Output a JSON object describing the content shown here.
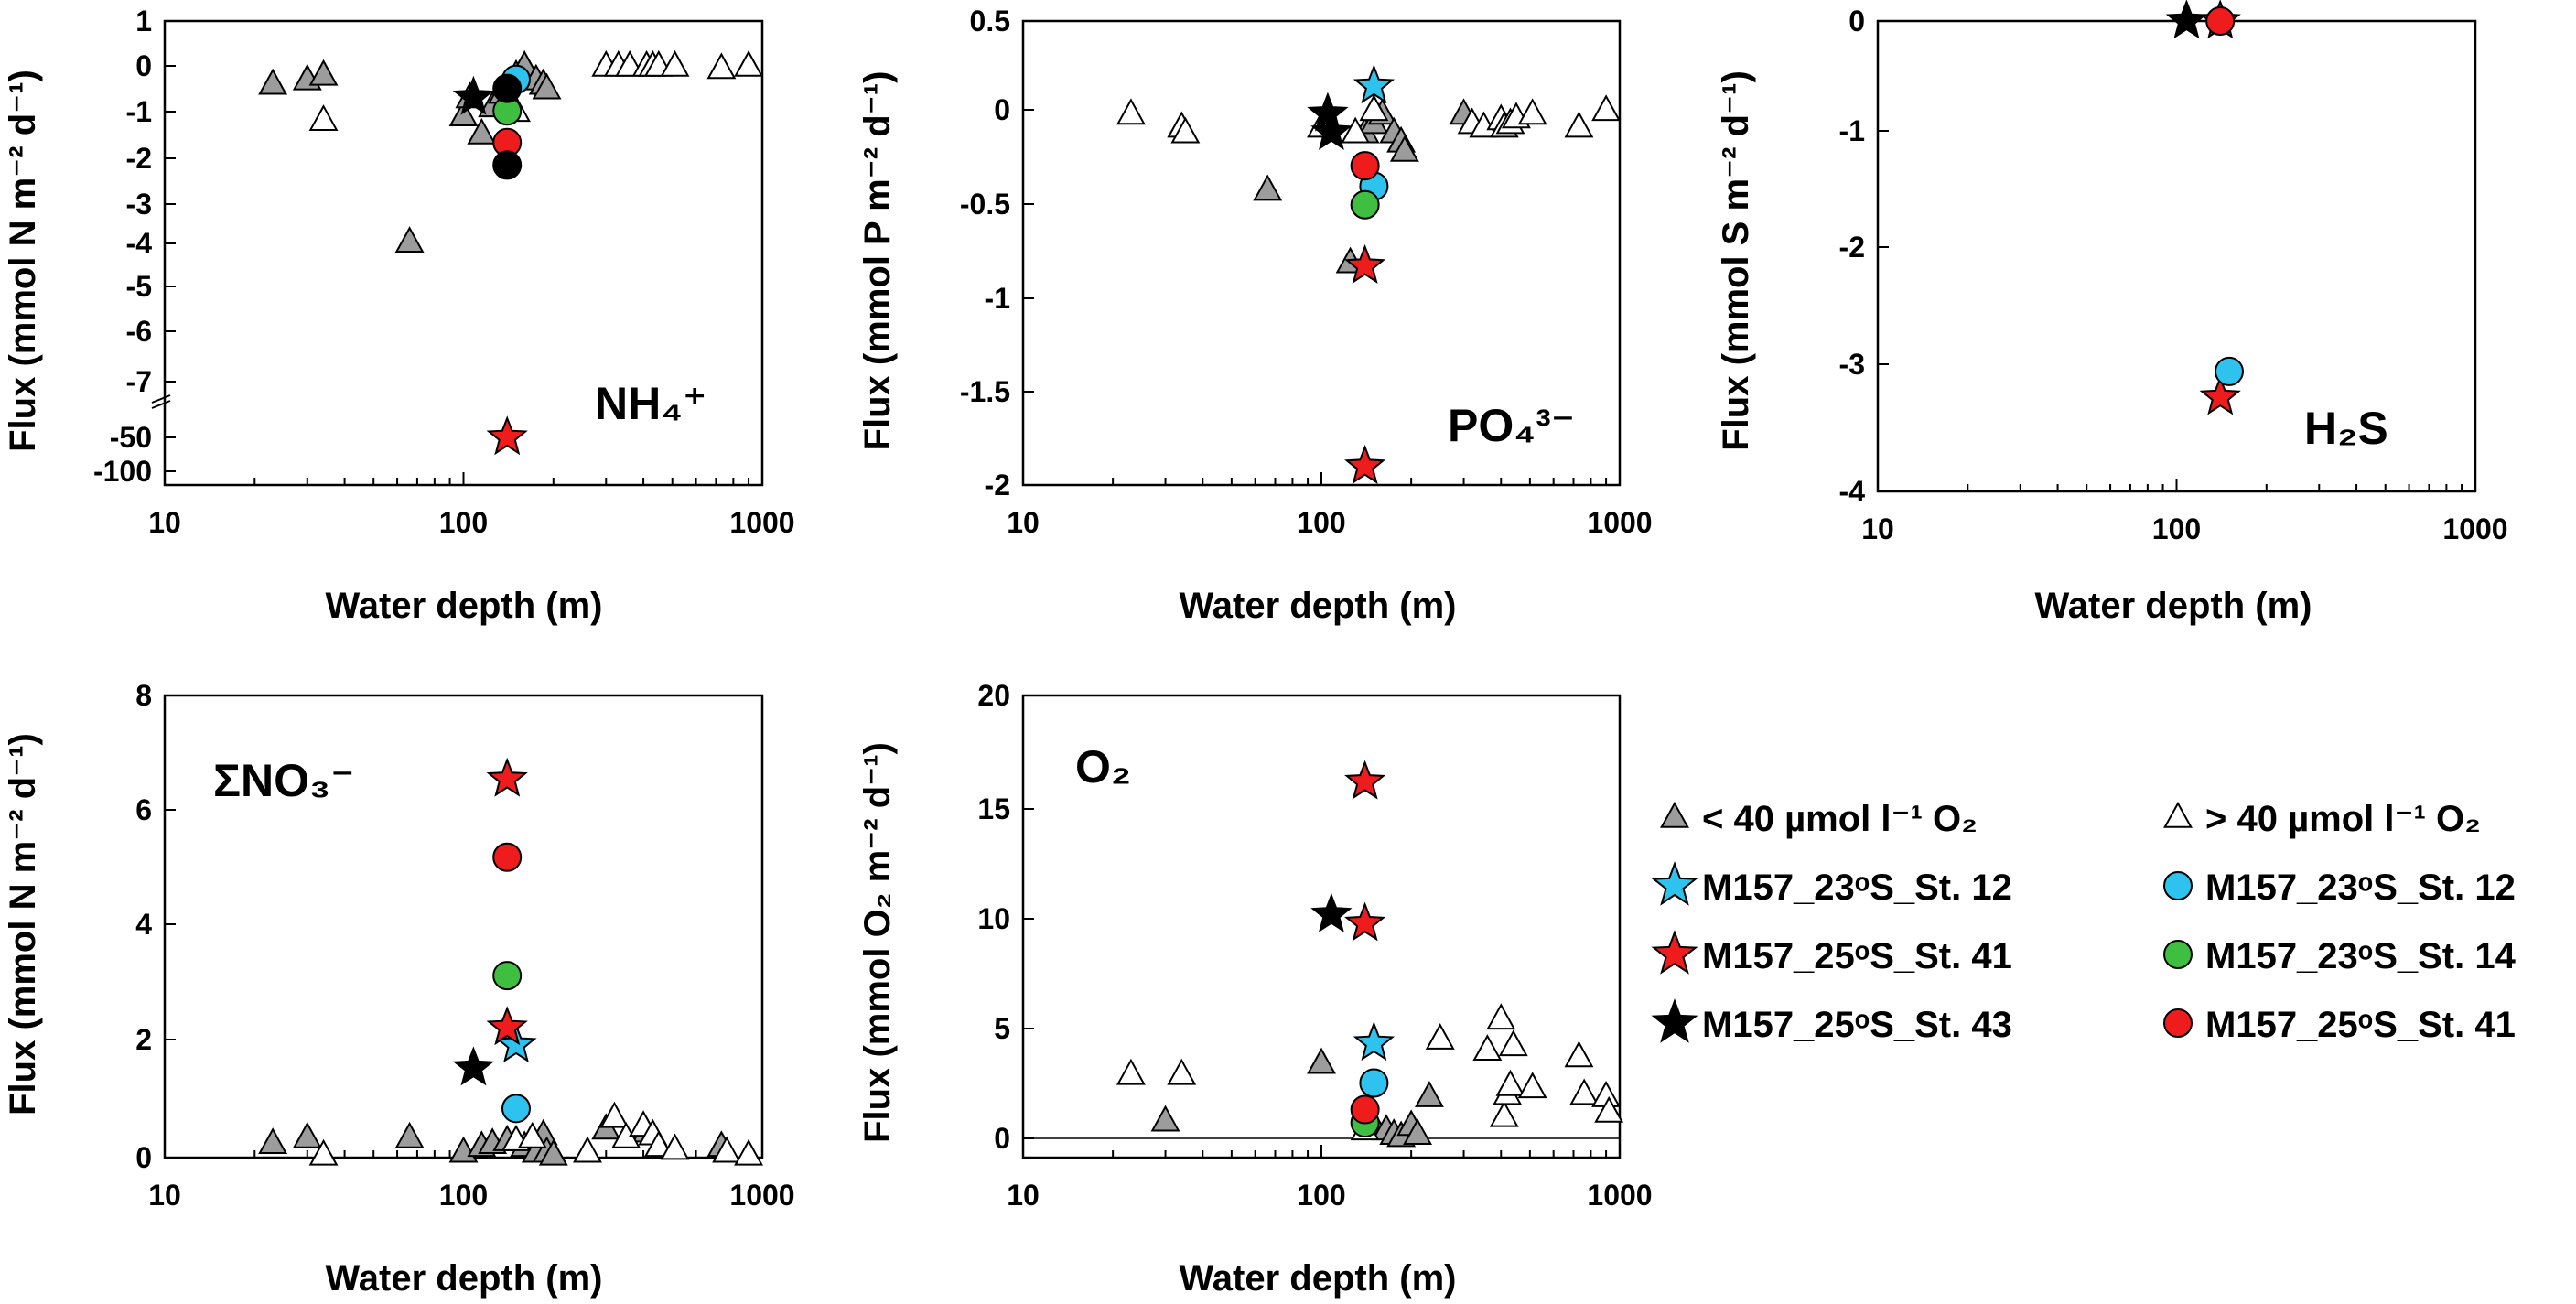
{
  "colors": {
    "low_o2_triangle": "#9c9c9c",
    "high_o2_triangle": "#ffffff",
    "cyan": "#2ec2ee",
    "red": "#ee1c1c",
    "green": "#3fbf3f",
    "black": "#000000"
  },
  "legend": {
    "items": [
      {
        "marker": "triangle-gray",
        "color": "#9c9c9c",
        "label": "< 40 µmol l⁻¹ O₂"
      },
      {
        "marker": "triangle-white",
        "color": "#ffffff",
        "label": "> 40 µmol l⁻¹ O₂"
      },
      {
        "marker": "star",
        "color": "#2ec2ee",
        "label": "M157_23ᵒS_St. 12"
      },
      {
        "marker": "circle",
        "color": "#2ec2ee",
        "label": "M157_23ᵒS_St. 12"
      },
      {
        "marker": "star",
        "color": "#ee1c1c",
        "label": "M157_25ᵒS_St. 41"
      },
      {
        "marker": "circle",
        "color": "#3fbf3f",
        "label": "M157_23ᵒS_St. 14"
      },
      {
        "marker": "star",
        "color": "#000000",
        "label": "M157_25ᵒS_St. 43"
      },
      {
        "marker": "circle",
        "color": "#ee1c1c",
        "label": "M157_25ᵒS_St. 41"
      }
    ]
  },
  "chart_data": [
    {
      "id": "nh4",
      "type": "scatter",
      "title": "NH₄⁺",
      "xlabel": "Water depth (m)",
      "ylabel": "Flux (mmol N m⁻² d⁻¹)",
      "xscale": "log",
      "xlim": [
        10,
        1000
      ],
      "xticks": [
        "10",
        "100",
        "1000"
      ],
      "ylim": [
        -100,
        1
      ],
      "yaxis_break": "between -7 and -50",
      "yticks": [
        "1",
        "0",
        "-1",
        "-2",
        "-3",
        "-4",
        "-5",
        "-6",
        "-7",
        "-50",
        "-100"
      ],
      "series": [
        {
          "name": "< 40 µmol l-1 O2",
          "marker": "triangle-gray",
          "points": [
            [
              23,
              -0.4
            ],
            [
              30,
              -0.3
            ],
            [
              34,
              -0.2
            ],
            [
              66,
              -3.9
            ],
            [
              100,
              -1.1
            ],
            [
              105,
              -0.7
            ],
            [
              115,
              -1.5
            ],
            [
              125,
              -0.9
            ],
            [
              135,
              -0.6
            ],
            [
              150,
              -0.2
            ],
            [
              160,
              0.0
            ],
            [
              175,
              -0.3
            ],
            [
              185,
              -0.4
            ],
            [
              190,
              -0.5
            ]
          ]
        },
        {
          "name": "> 40 µmol l-1 O2",
          "marker": "triangle-white",
          "points": [
            [
              34,
              -1.2
            ],
            [
              150,
              -1.0
            ],
            [
              300,
              0.0
            ],
            [
              330,
              0.0
            ],
            [
              360,
              0.0
            ],
            [
              410,
              0.0
            ],
            [
              430,
              0.0
            ],
            [
              450,
              0.0
            ],
            [
              510,
              0.0
            ],
            [
              730,
              -0.05
            ],
            [
              900,
              0.0
            ]
          ]
        },
        {
          "name": "M157_23oS_St. 12",
          "marker": "star",
          "color": "#2ec2ee",
          "points": []
        },
        {
          "name": "M157_25oS_St. 41",
          "marker": "star",
          "color": "#ee1c1c",
          "points": [
            [
              140,
              -50
            ]
          ]
        },
        {
          "name": "M157_25oS_St. 43",
          "marker": "star",
          "color": "#000000",
          "points": [
            [
              108,
              -0.7
            ]
          ]
        },
        {
          "name": "M157_23oS_St. 12",
          "marker": "circle",
          "color": "#2ec2ee",
          "points": [
            [
              150,
              -0.3
            ]
          ]
        },
        {
          "name": "M157_23oS_St. 14",
          "marker": "circle",
          "color": "#3fbf3f",
          "points": [
            [
              140,
              -1.0
            ]
          ]
        },
        {
          "name": "M157_25oS_St. 41",
          "marker": "circle",
          "color": "#ee1c1c",
          "points": [
            [
              140,
              -1.7
            ]
          ]
        },
        {
          "name": "M157_25oS_St. 43",
          "marker": "circle",
          "color": "#000000",
          "points": [
            [
              140,
              -0.5
            ],
            [
              140,
              -2.2
            ]
          ]
        }
      ]
    },
    {
      "id": "po4",
      "type": "scatter",
      "title": "PO₄³⁻",
      "xlabel": "Water depth (m)",
      "ylabel": "Flux (mmol P m⁻² d⁻¹)",
      "xscale": "log",
      "xlim": [
        10,
        1000
      ],
      "xticks": [
        "10",
        "100",
        "1000"
      ],
      "ylim": [
        -2,
        0.5
      ],
      "yticks": [
        "0.5",
        "0",
        "-0.5",
        "-1",
        "-1.5",
        "-2"
      ],
      "series": [
        {
          "name": "< 40 µmol l-1 O2",
          "marker": "triangle-gray",
          "points": [
            [
              66,
              -0.41
            ],
            [
              125,
              -0.8
            ],
            [
              140,
              -0.1
            ],
            [
              150,
              -0.05
            ],
            [
              160,
              0.0
            ],
            [
              175,
              -0.1
            ],
            [
              185,
              -0.15
            ],
            [
              190,
              -0.2
            ],
            [
              300,
              0.0
            ]
          ]
        },
        {
          "name": "> 40 µmol l-1 O2",
          "marker": "triangle-white",
          "points": [
            [
              23,
              0.0
            ],
            [
              34,
              -0.07
            ],
            [
              35,
              -0.1
            ],
            [
              100,
              -0.07
            ],
            [
              130,
              -0.1
            ],
            [
              150,
              0.02
            ],
            [
              320,
              -0.05
            ],
            [
              350,
              -0.07
            ],
            [
              400,
              -0.03
            ],
            [
              410,
              -0.07
            ],
            [
              430,
              -0.05
            ],
            [
              450,
              -0.02
            ],
            [
              510,
              0.0
            ],
            [
              730,
              -0.07
            ],
            [
              900,
              0.02
            ]
          ]
        },
        {
          "name": "M157_23oS_St. 12",
          "marker": "star",
          "color": "#2ec2ee",
          "points": [
            [
              150,
              0.15
            ]
          ]
        },
        {
          "name": "M157_25oS_St. 41",
          "marker": "star",
          "color": "#ee1c1c",
          "points": [
            [
              140,
              -0.82
            ],
            [
              140,
              -1.9
            ]
          ]
        },
        {
          "name": "M157_25oS_St. 43",
          "marker": "star",
          "color": "#000000",
          "points": [
            [
              105,
              0.0
            ],
            [
              108,
              -0.1
            ]
          ]
        },
        {
          "name": "M157_23oS_St. 12",
          "marker": "circle",
          "color": "#2ec2ee",
          "points": [
            [
              150,
              -0.39
            ]
          ]
        },
        {
          "name": "M157_23oS_St. 14",
          "marker": "circle",
          "color": "#3fbf3f",
          "points": [
            [
              140,
              -0.49
            ]
          ]
        },
        {
          "name": "M157_25oS_St. 41",
          "marker": "circle",
          "color": "#ee1c1c",
          "points": [
            [
              140,
              -0.28
            ]
          ]
        }
      ]
    },
    {
      "id": "h2s",
      "type": "scatter",
      "title": "H₂S",
      "xlabel": "Water depth (m)",
      "ylabel": "Flux (mmol S m⁻² d⁻¹)",
      "xscale": "log",
      "xlim": [
        10,
        1000
      ],
      "xticks": [
        "10",
        "100",
        "1000"
      ],
      "ylim": [
        -4,
        0
      ],
      "yticks": [
        "0",
        "-1",
        "-2",
        "-3",
        "-4"
      ],
      "series": [
        {
          "name": "M157_23oS_St. 12",
          "marker": "star",
          "color": "#2ec2ee",
          "points": []
        },
        {
          "name": "M157_25oS_St. 41",
          "marker": "star",
          "color": "#ee1c1c",
          "points": [
            [
              140,
              -3.2
            ],
            [
              140,
              0.0
            ]
          ]
        },
        {
          "name": "M157_25oS_St. 43",
          "marker": "star",
          "color": "#000000",
          "points": [
            [
              108,
              0.0
            ]
          ]
        },
        {
          "name": "M157_23oS_St. 12",
          "marker": "circle",
          "color": "#2ec2ee",
          "points": [
            [
              150,
              -2.98
            ]
          ]
        },
        {
          "name": "M157_25oS_St. 41",
          "marker": "circle",
          "color": "#ee1c1c",
          "points": [
            [
              140,
              0.0
            ]
          ]
        }
      ]
    },
    {
      "id": "no3",
      "type": "scatter",
      "title": "ΣNO₃⁻",
      "xlabel": "Water depth (m)",
      "ylabel": "Flux (mmol N m⁻² d⁻¹)",
      "xscale": "log",
      "xlim": [
        10,
        1000
      ],
      "xticks": [
        "10",
        "100",
        "1000"
      ],
      "ylim": [
        0,
        8
      ],
      "yticks": [
        "8",
        "6",
        "4",
        "2",
        "0"
      ],
      "series": [
        {
          "name": "< 40 µmol l-1 O2",
          "marker": "triangle-gray",
          "points": [
            [
              23,
              0.25
            ],
            [
              30,
              0.35
            ],
            [
              66,
              0.35
            ],
            [
              100,
              0.1
            ],
            [
              115,
              0.2
            ],
            [
              125,
              0.25
            ],
            [
              140,
              0.3
            ],
            [
              160,
              0.2
            ],
            [
              175,
              0.1
            ],
            [
              185,
              0.4
            ],
            [
              190,
              0.1
            ],
            [
              200,
              0.05
            ],
            [
              300,
              0.5
            ],
            [
              410,
              0.45
            ],
            [
              730,
              0.2
            ]
          ]
        },
        {
          "name": "> 40 µmol l-1 O2",
          "marker": "triangle-white",
          "points": [
            [
              34,
              0.05
            ],
            [
              150,
              0.3
            ],
            [
              170,
              0.35
            ],
            [
              260,
              0.1
            ],
            [
              320,
              0.7
            ],
            [
              350,
              0.35
            ],
            [
              400,
              0.55
            ],
            [
              430,
              0.4
            ],
            [
              450,
              0.2
            ],
            [
              510,
              0.15
            ],
            [
              760,
              0.1
            ],
            [
              900,
              0.05
            ]
          ]
        },
        {
          "name": "M157_23oS_St. 12",
          "marker": "star",
          "color": "#2ec2ee",
          "points": [
            [
              150,
              1.95
            ]
          ]
        },
        {
          "name": "M157_25oS_St. 41",
          "marker": "star",
          "color": "#ee1c1c",
          "points": [
            [
              140,
              6.55
            ],
            [
              140,
              2.25
            ]
          ]
        },
        {
          "name": "M157_25oS_St. 43",
          "marker": "star",
          "color": "#000000",
          "points": [
            [
              108,
              1.55
            ]
          ]
        },
        {
          "name": "M157_23oS_St. 12",
          "marker": "circle",
          "color": "#2ec2ee",
          "points": [
            [
              150,
              0.85
            ]
          ]
        },
        {
          "name": "M157_23oS_St. 14",
          "marker": "circle",
          "color": "#3fbf3f",
          "points": [
            [
              140,
              3.15
            ]
          ]
        },
        {
          "name": "M157_25oS_St. 41",
          "marker": "circle",
          "color": "#ee1c1c",
          "points": [
            [
              140,
              5.2
            ]
          ]
        }
      ]
    },
    {
      "id": "o2",
      "type": "scatter",
      "title": "O₂",
      "xlabel": "Water depth (m)",
      "ylabel": "Flux (mmol O₂ m⁻² d⁻¹)",
      "xscale": "log",
      "xlim": [
        10,
        1000
      ],
      "xticks": [
        "10",
        "100",
        "1000"
      ],
      "ylim": [
        -1,
        20
      ],
      "yticks": [
        "20",
        "15",
        "10",
        "5",
        "0"
      ],
      "series": [
        {
          "name": "< 40 µmol l-1 O2",
          "marker": "triangle-gray",
          "points": [
            [
              30,
              0.8
            ],
            [
              100,
              3.4
            ],
            [
              150,
              0.6
            ],
            [
              165,
              0.4
            ],
            [
              175,
              0.2
            ],
            [
              185,
              0.1
            ],
            [
              200,
              0.6
            ],
            [
              210,
              0.2
            ],
            [
              230,
              1.9
            ]
          ]
        },
        {
          "name": "> 40 µmol l-1 O2",
          "marker": "triangle-white",
          "points": [
            [
              23,
              2.9
            ],
            [
              34,
              2.9
            ],
            [
              140,
              0.4
            ],
            [
              250,
              4.5
            ],
            [
              360,
              4.0
            ],
            [
              400,
              5.4
            ],
            [
              410,
              1.0
            ],
            [
              420,
              2.0
            ],
            [
              430,
              2.4
            ],
            [
              440,
              4.2
            ],
            [
              510,
              2.3
            ],
            [
              730,
              3.7
            ],
            [
              760,
              2.0
            ],
            [
              900,
              1.9
            ],
            [
              920,
              1.2
            ]
          ]
        },
        {
          "name": "M157_23oS_St. 12",
          "marker": "star",
          "color": "#2ec2ee",
          "points": [
            [
              150,
              4.3
            ]
          ]
        },
        {
          "name": "M157_25oS_St. 41",
          "marker": "star",
          "color": "#ee1c1c",
          "points": [
            [
              140,
              16.1
            ],
            [
              140,
              9.7
            ]
          ]
        },
        {
          "name": "M157_25oS_St. 43",
          "marker": "star",
          "color": "#000000",
          "points": [
            [
              108,
              10.1
            ]
          ]
        },
        {
          "name": "M157_23oS_St. 12",
          "marker": "circle",
          "color": "#2ec2ee",
          "points": [
            [
              150,
              2.5
            ]
          ]
        },
        {
          "name": "M157_23oS_St. 14",
          "marker": "circle",
          "color": "#3fbf3f",
          "points": [
            [
              140,
              0.7
            ]
          ]
        },
        {
          "name": "M157_25oS_St. 41",
          "marker": "circle",
          "color": "#ee1c1c",
          "points": [
            [
              140,
              1.3
            ]
          ]
        }
      ]
    }
  ]
}
